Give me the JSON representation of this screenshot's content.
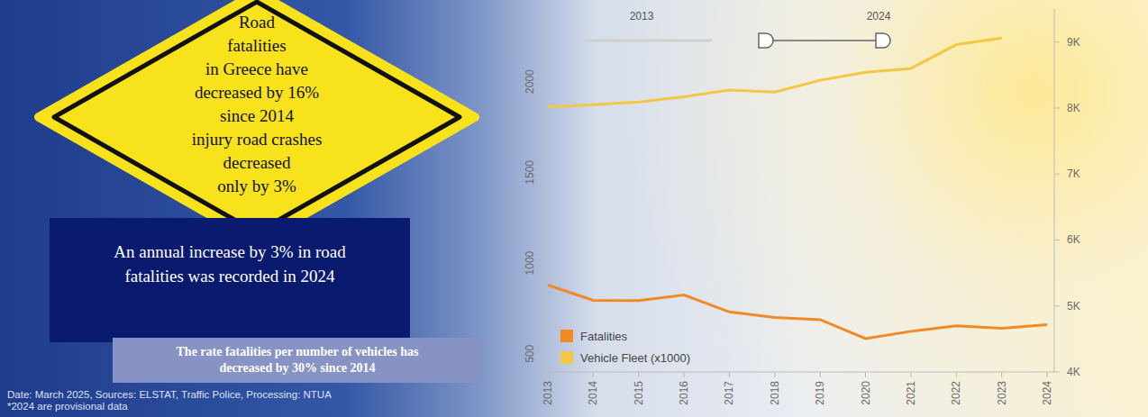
{
  "chart_data": {
    "type": "line",
    "categories": [
      "2013",
      "2014",
      "2015",
      "2016",
      "2017",
      "2018",
      "2019",
      "2020",
      "2021",
      "2022",
      "2023",
      "2024"
    ],
    "series": [
      {
        "name": "Fatalities",
        "color": "#f08a24",
        "values": [
          879,
          795,
          793,
          824,
          731,
          700,
          688,
          584,
          624,
          654,
          641,
          660
        ]
      },
      {
        "name": "Vehicle Fleet (x1000)",
        "color": "#f2c744",
        "axis": "y2",
        "values": [
          8020,
          8050,
          8090,
          8170,
          8270,
          8240,
          8420,
          8540,
          8600,
          8960,
          9060,
          null
        ]
      }
    ],
    "ylim": [
      400,
      2400
    ],
    "yticks": [
      500,
      1000,
      1500,
      2000
    ],
    "y2lim": [
      4000,
      9500
    ],
    "y2ticks": [
      {
        "value": 4000,
        "label": "4K"
      },
      {
        "value": 5000,
        "label": "5K"
      },
      {
        "value": 6000,
        "label": "6K"
      },
      {
        "value": 7000,
        "label": "7K"
      },
      {
        "value": 8000,
        "label": "8K"
      },
      {
        "value": 9000,
        "label": "9K"
      }
    ],
    "grid": false,
    "legend": "lower left"
  },
  "range_slider": {
    "from": "2013",
    "to": "2024"
  },
  "sign": [
    "Road",
    "fatalities",
    "in Greece have",
    "decreased by 16%",
    "since 2014",
    "injury road crashes",
    "decreased",
    "only by 3%"
  ],
  "boxes": [
    "An annual increase by 3% in road fatalities was recorded in 2024",
    "The rate fatalities per number of vehicles has decreased by 30% since 2014"
  ],
  "footer": [
    "Date: March 2025, Sources: ELSTAT, Traffic Police, Processing: NTUA",
    "*2024 are provisional data"
  ]
}
